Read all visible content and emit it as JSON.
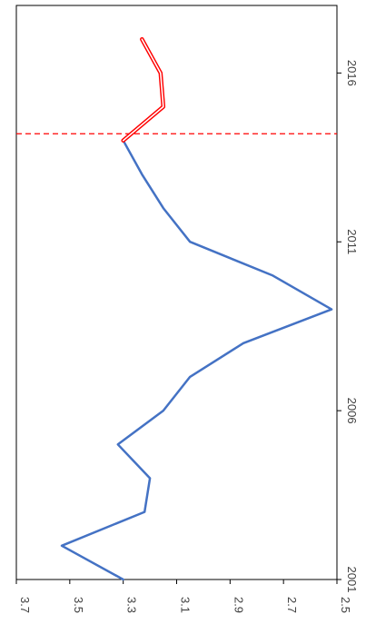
{
  "chart_data": {
    "type": "line",
    "orientation": "rotated-90-clockwise",
    "title": "",
    "xlabel": "",
    "ylabel": "",
    "x_ticks": [
      "2001",
      "2006",
      "2011",
      "2016"
    ],
    "y_ticks": [
      "3.7",
      "3.5",
      "3.3",
      "3.1",
      "2.9",
      "2.7",
      "2.5"
    ],
    "xlim": [
      2001,
      2018
    ],
    "ylim": [
      2.5,
      3.7
    ],
    "grid": false,
    "legend": "none",
    "series": [
      {
        "style": "solid",
        "color": "#4472c4",
        "x": [
          2001,
          2002,
          2003,
          2004,
          2005,
          2006,
          2007,
          2008,
          2009,
          2010,
          2011,
          2012,
          2013,
          2014
        ],
        "y": [
          3.3,
          3.53,
          3.22,
          3.2,
          3.32,
          3.15,
          3.05,
          2.85,
          2.52,
          2.74,
          3.05,
          3.15,
          3.23,
          3.3
        ]
      },
      {
        "style": "double-line",
        "color": "#ff0000",
        "x": [
          2014,
          2015,
          2016,
          2017
        ],
        "y": [
          3.3,
          3.15,
          3.16,
          3.23
        ]
      }
    ],
    "reference_lines": [
      {
        "axis": "x",
        "value": 2014.2,
        "style": "dashed",
        "color": "#ff0000"
      }
    ]
  }
}
